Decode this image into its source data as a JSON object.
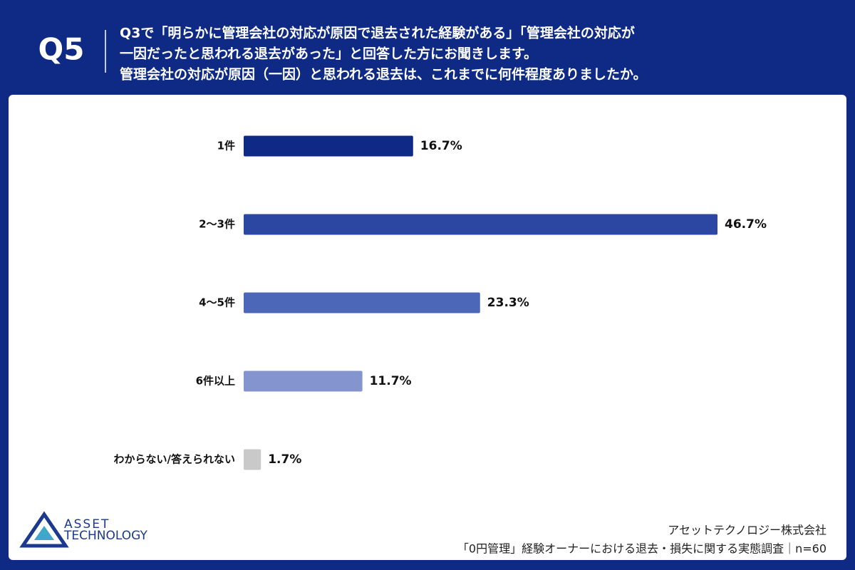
{
  "chart_data": {
    "type": "bar",
    "orientation": "horizontal",
    "question_label": "Q5",
    "title": [
      "Q3で「明らかに管理会社の対応が原因で退去された経験がある」「管理会社の対応が",
      "一因だったと思われる退去があった」と回答した方にお聞きします。",
      "管理会社の対応が原因（一因）と思われる退去は、これまでに何件程度ありましたか。"
    ],
    "categories": [
      "1件",
      "2〜3件",
      "4〜5件",
      "6件以上",
      "わからない/答えられない"
    ],
    "values": [
      16.7,
      46.7,
      23.3,
      11.7,
      1.7
    ],
    "value_labels": [
      "16.7%",
      "46.7%",
      "23.3%",
      "11.7%",
      "1.7%"
    ],
    "colors": [
      "#0f2a86",
      "#2c47a2",
      "#4d67b8",
      "#8494cf",
      "#c9c9c9"
    ],
    "logo": [
      "ASSET",
      "TECHNOLOGY"
    ],
    "source": [
      "アセットテクノロジー株式会社",
      "「0円管理」経験オーナーにおける退去・損失に関する実態調査｜n=60"
    ]
  }
}
